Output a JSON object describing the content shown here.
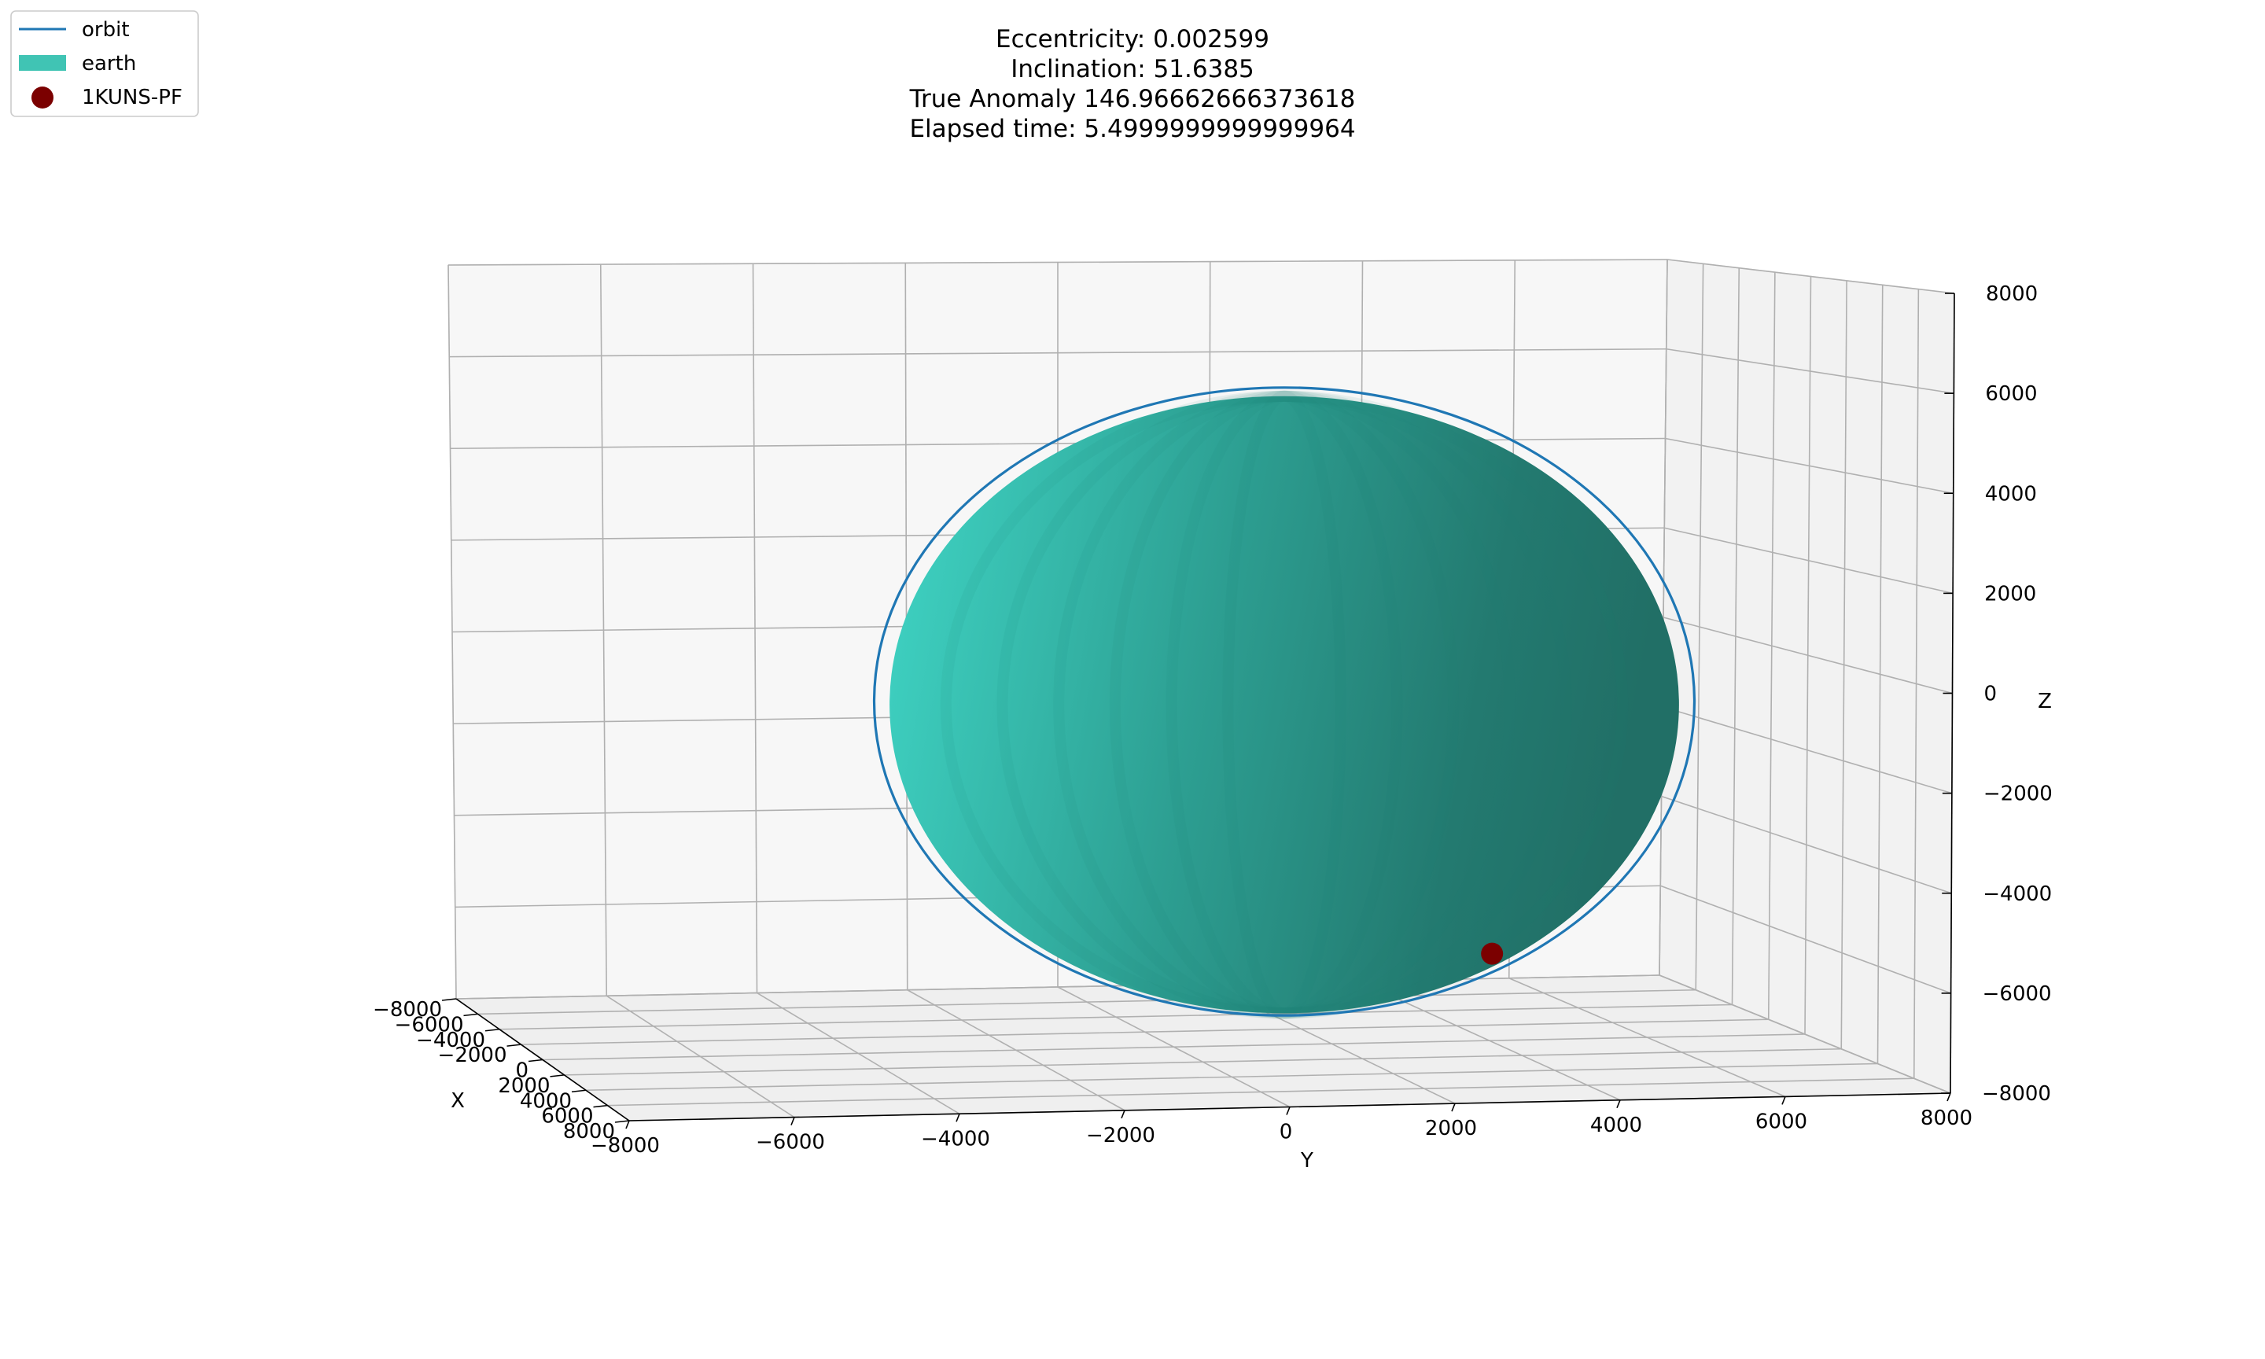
{
  "chart_data": {
    "type": "3d-surface-line-scatter",
    "title_lines": [
      "Eccentricity: 0.002599",
      "Inclination: 51.6385",
      "True Anomaly 146.96662666373618",
      "Elapsed time: 5.4999999999999964"
    ],
    "xlabel": "X",
    "ylabel": "Y",
    "zlabel": "Z",
    "xlim": [
      -8000,
      8000
    ],
    "ylim": [
      -8000,
      8000
    ],
    "zlim": [
      -8000,
      8000
    ],
    "x_ticks": [
      "−8000",
      "−6000",
      "−4000",
      "−2000",
      "0",
      "2000",
      "4000",
      "6000",
      "8000"
    ],
    "y_ticks": [
      "−8000",
      "−6000",
      "−4000",
      "−2000",
      "0",
      "2000",
      "4000",
      "6000",
      "8000"
    ],
    "z_ticks": [
      "−8000",
      "−6000",
      "−4000",
      "−2000",
      "0",
      "2000",
      "4000",
      "6000",
      "8000"
    ],
    "grid": true,
    "legend_placement": "upper-left",
    "series": [
      {
        "name": "orbit",
        "kind": "line",
        "color": "#1f77b4",
        "radius": 6790
      },
      {
        "name": "earth",
        "kind": "surface",
        "color": "#40c4b4",
        "radius": 6378
      },
      {
        "name": "1KUNS-PF",
        "kind": "scatter",
        "color": "#7b0000",
        "y": 3400,
        "z": -5100
      }
    ]
  }
}
